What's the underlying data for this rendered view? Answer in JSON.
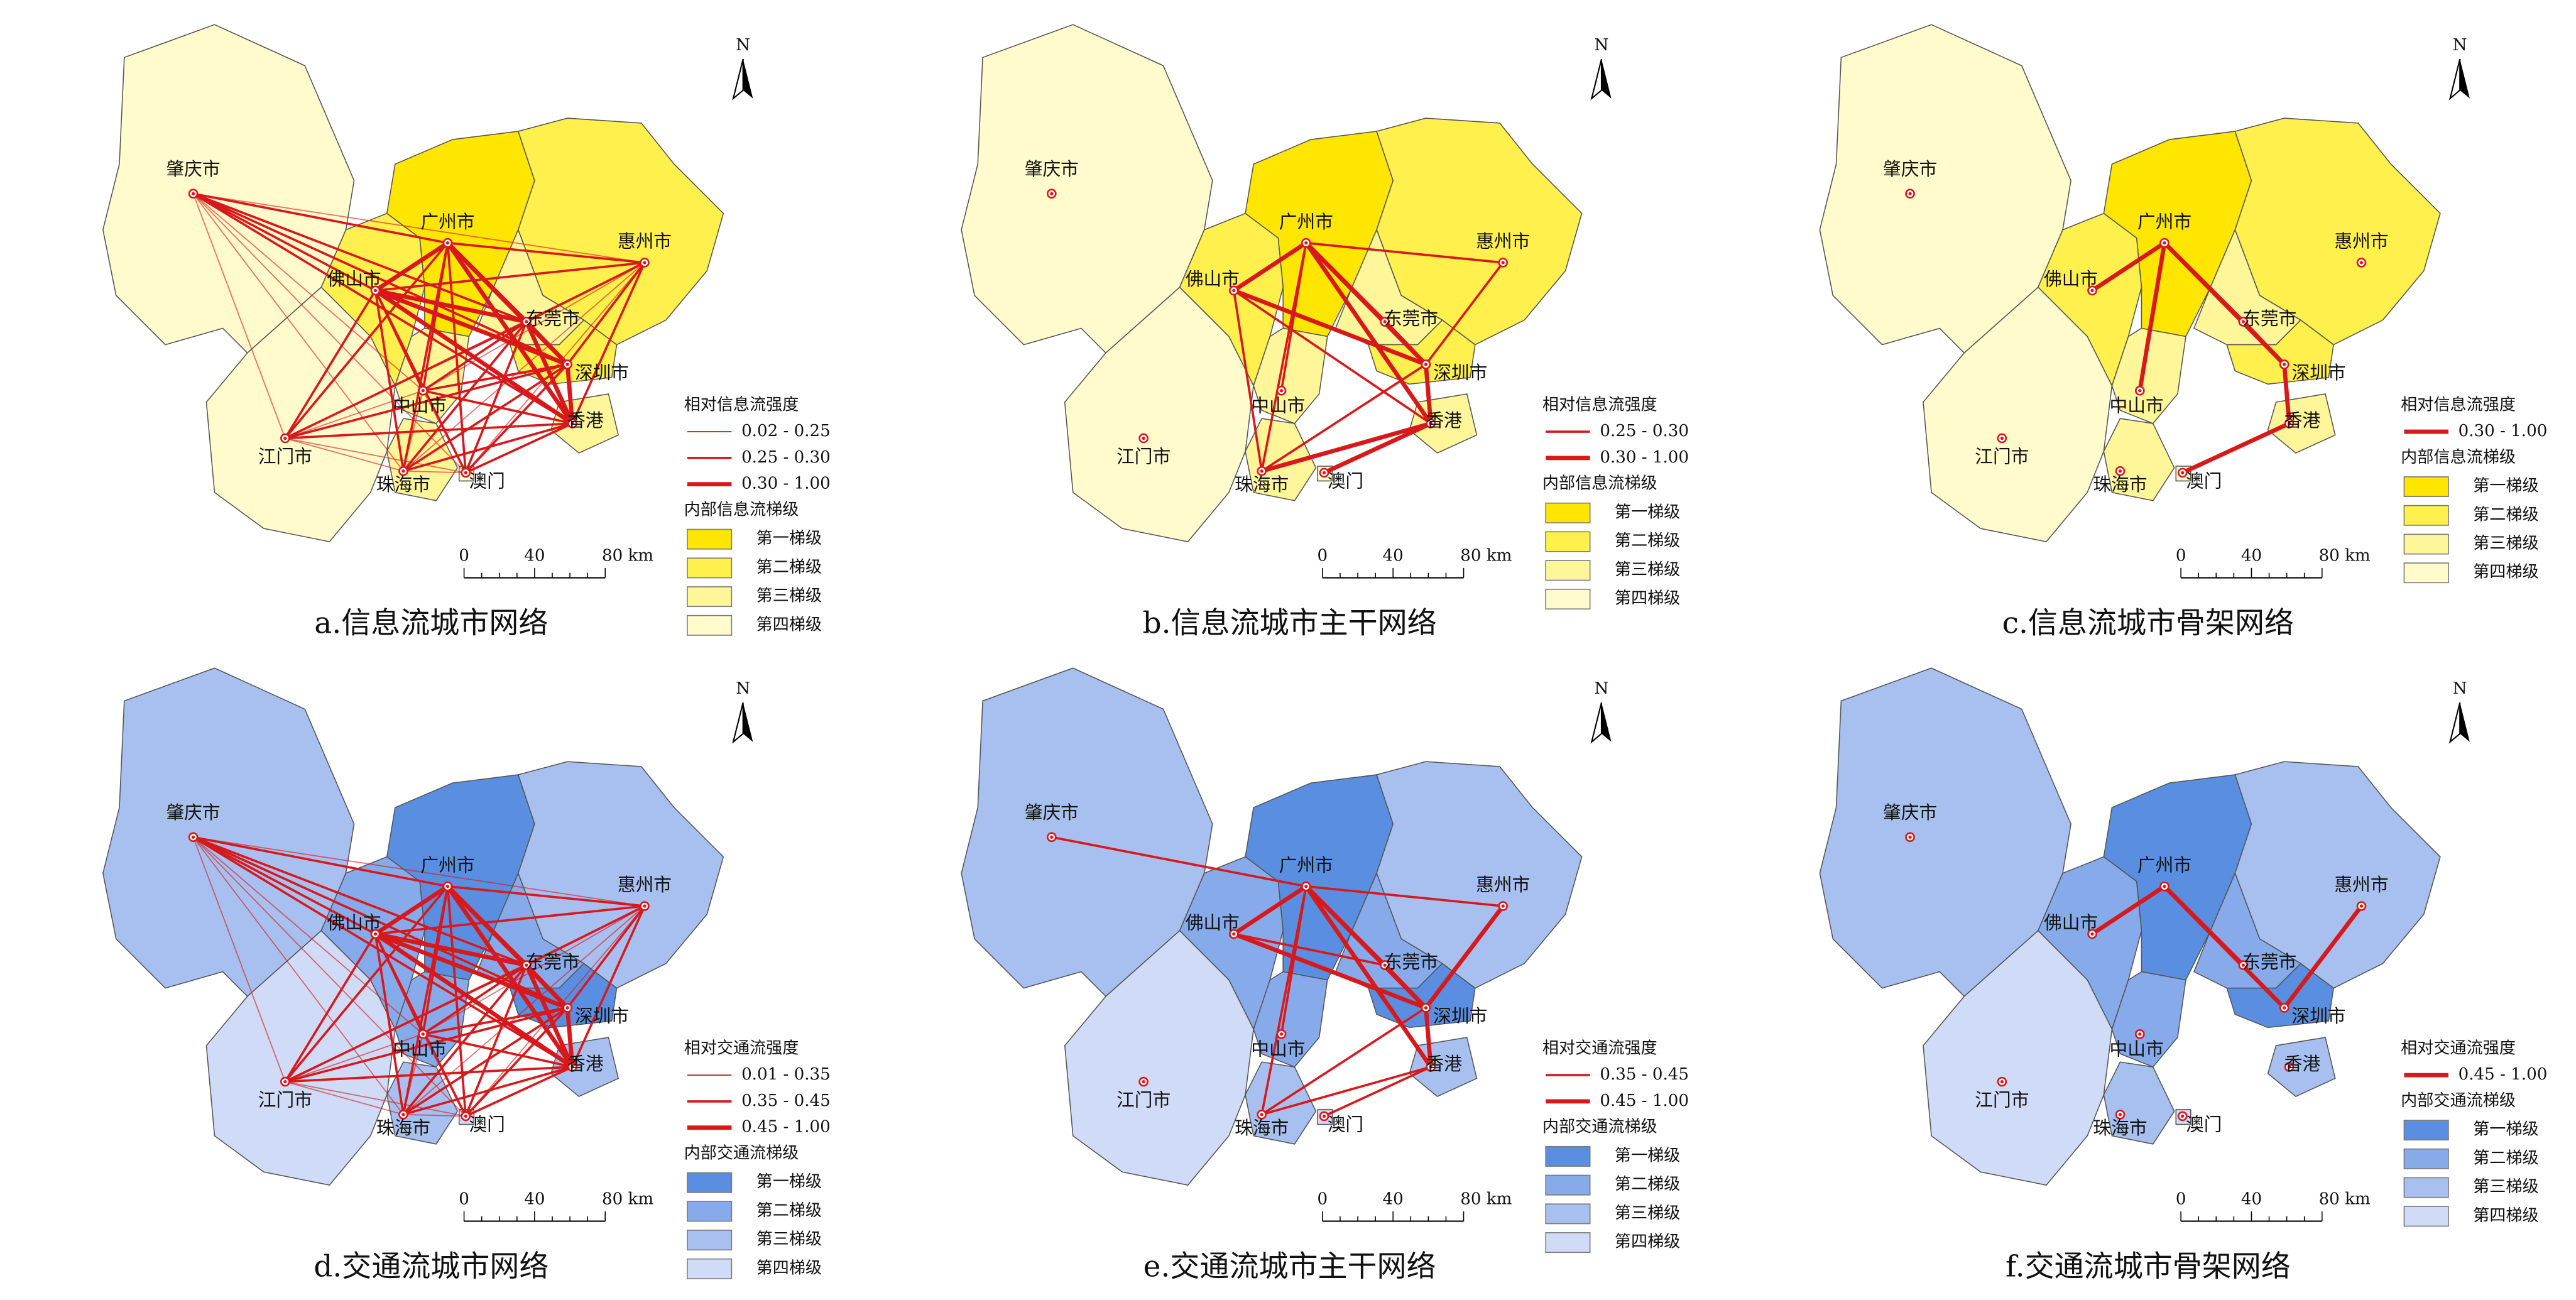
{
  "panels": [
    {
      "caption": "a.信息流城市网络",
      "north": "N",
      "cities": [
        {
          "name": "肇庆市",
          "fill": "#fffbcc"
        },
        {
          "name": "广州市",
          "fill": "#ffe600"
        },
        {
          "name": "惠州市",
          "fill": "#fff04d"
        },
        {
          "name": "佛山市",
          "fill": "#fff04d"
        },
        {
          "name": "东莞市",
          "fill": "#fff599"
        },
        {
          "name": "深圳市",
          "fill": "#fff04d"
        },
        {
          "name": "中山市",
          "fill": "#fff599"
        },
        {
          "name": "江门市",
          "fill": "#fffbcc"
        },
        {
          "name": "珠海市",
          "fill": "#fff599"
        },
        {
          "name": "澳门",
          "fill": "#fffbcc"
        },
        {
          "name": "香港",
          "fill": "#fff599"
        }
      ],
      "legend": {
        "link_title": "相对信息流强度",
        "links": [
          "0.02 - 0.25",
          "0.25 - 0.30",
          "0.30 - 1.00"
        ],
        "link_color": "#d7191c",
        "tier_title": "内部信息流梯级",
        "tiers": [
          {
            "label": "第一梯级",
            "color": "#ffe600"
          },
          {
            "label": "第二梯级",
            "color": "#fff04d"
          },
          {
            "label": "第三梯级",
            "color": "#fff599"
          },
          {
            "label": "第四梯级",
            "color": "#fffbcc"
          }
        ]
      },
      "scale": [
        "0",
        "40",
        "80 km"
      ]
    },
    {
      "caption": "b.信息流城市主干网络",
      "north": "N",
      "cities": [
        {
          "name": "肇庆市",
          "fill": "#fffbcc"
        },
        {
          "name": "广州市",
          "fill": "#ffe600"
        },
        {
          "name": "惠州市",
          "fill": "#fff04d"
        },
        {
          "name": "佛山市",
          "fill": "#fff04d"
        },
        {
          "name": "东莞市",
          "fill": "#fff599"
        },
        {
          "name": "深圳市",
          "fill": "#fff04d"
        },
        {
          "name": "中山市",
          "fill": "#fff599"
        },
        {
          "name": "江门市",
          "fill": "#fffbcc"
        },
        {
          "name": "珠海市",
          "fill": "#fff599"
        },
        {
          "name": "澳门",
          "fill": "#fffbcc"
        },
        {
          "name": "香港",
          "fill": "#fff599"
        }
      ],
      "legend": {
        "link_title": "相对信息流强度",
        "links": [
          "0.25 - 0.30",
          "0.30 - 1.00"
        ],
        "link_color": "#d7191c",
        "tier_title": "内部信息流梯级",
        "tiers": [
          {
            "label": "第一梯级",
            "color": "#ffe600"
          },
          {
            "label": "第二梯级",
            "color": "#fff04d"
          },
          {
            "label": "第三梯级",
            "color": "#fff599"
          },
          {
            "label": "第四梯级",
            "color": "#fffbcc"
          }
        ]
      },
      "scale": [
        "0",
        "40",
        "80 km"
      ]
    },
    {
      "caption": "c.信息流城市骨架网络",
      "north": "N",
      "cities": [
        {
          "name": "肇庆市",
          "fill": "#fffbcc"
        },
        {
          "name": "广州市",
          "fill": "#ffe600"
        },
        {
          "name": "惠州市",
          "fill": "#fff04d"
        },
        {
          "name": "佛山市",
          "fill": "#fff04d"
        },
        {
          "name": "东莞市",
          "fill": "#fff599"
        },
        {
          "name": "深圳市",
          "fill": "#fff04d"
        },
        {
          "name": "中山市",
          "fill": "#fff599"
        },
        {
          "name": "江门市",
          "fill": "#fffbcc"
        },
        {
          "name": "珠海市",
          "fill": "#fff599"
        },
        {
          "name": "澳门",
          "fill": "#fffbcc"
        },
        {
          "name": "香港",
          "fill": "#fff599"
        }
      ],
      "legend": {
        "link_title": "相对信息流强度",
        "links": [
          "0.30 - 1.00"
        ],
        "link_color": "#d7191c",
        "tier_title": "内部信息流梯级",
        "tiers": [
          {
            "label": "第一梯级",
            "color": "#ffe600"
          },
          {
            "label": "第二梯级",
            "color": "#fff04d"
          },
          {
            "label": "第三梯级",
            "color": "#fff599"
          },
          {
            "label": "第四梯级",
            "color": "#fffbcc"
          }
        ]
      },
      "scale": [
        "0",
        "40",
        "80 km"
      ]
    },
    {
      "caption": "d.交通流城市网络",
      "north": "N",
      "cities": [
        {
          "name": "肇庆市",
          "fill": "#a8c0f0"
        },
        {
          "name": "广州市",
          "fill": "#5a8ee0"
        },
        {
          "name": "惠州市",
          "fill": "#a8c0f0"
        },
        {
          "name": "佛山市",
          "fill": "#86aaea"
        },
        {
          "name": "东莞市",
          "fill": "#86aaea"
        },
        {
          "name": "深圳市",
          "fill": "#5a8ee0"
        },
        {
          "name": "中山市",
          "fill": "#86aaea"
        },
        {
          "name": "江门市",
          "fill": "#cfdbf7"
        },
        {
          "name": "珠海市",
          "fill": "#a8c0f0"
        },
        {
          "name": "澳门",
          "fill": "#cfdbf7"
        },
        {
          "name": "香港",
          "fill": "#a8c0f0"
        }
      ],
      "legend": {
        "link_title": "相对交通流强度",
        "links": [
          "0.01 - 0.35",
          "0.35 - 0.45",
          "0.45 - 1.00"
        ],
        "link_color": "#d7191c",
        "tier_title": "内部交通流梯级",
        "tiers": [
          {
            "label": "第一梯级",
            "color": "#5a8ee0"
          },
          {
            "label": "第二梯级",
            "color": "#86aaea"
          },
          {
            "label": "第三梯级",
            "color": "#a8c0f0"
          },
          {
            "label": "第四梯级",
            "color": "#cfdbf7"
          }
        ]
      },
      "scale": [
        "0",
        "40",
        "80 km"
      ]
    },
    {
      "caption": "e.交通流城市主干网络",
      "north": "N",
      "cities": [
        {
          "name": "肇庆市",
          "fill": "#a8c0f0"
        },
        {
          "name": "广州市",
          "fill": "#5a8ee0"
        },
        {
          "name": "惠州市",
          "fill": "#a8c0f0"
        },
        {
          "name": "佛山市",
          "fill": "#86aaea"
        },
        {
          "name": "东莞市",
          "fill": "#86aaea"
        },
        {
          "name": "深圳市",
          "fill": "#5a8ee0"
        },
        {
          "name": "中山市",
          "fill": "#86aaea"
        },
        {
          "name": "江门市",
          "fill": "#cfdbf7"
        },
        {
          "name": "珠海市",
          "fill": "#a8c0f0"
        },
        {
          "name": "澳门",
          "fill": "#cfdbf7"
        },
        {
          "name": "香港",
          "fill": "#a8c0f0"
        }
      ],
      "legend": {
        "link_title": "相对交通流强度",
        "links": [
          "0.35 - 0.45",
          "0.45 - 1.00"
        ],
        "link_color": "#d7191c",
        "tier_title": "内部交通流梯级",
        "tiers": [
          {
            "label": "第一梯级",
            "color": "#5a8ee0"
          },
          {
            "label": "第二梯级",
            "color": "#86aaea"
          },
          {
            "label": "第三梯级",
            "color": "#a8c0f0"
          },
          {
            "label": "第四梯级",
            "color": "#cfdbf7"
          }
        ]
      },
      "scale": [
        "0",
        "40",
        "80 km"
      ]
    },
    {
      "caption": "f.交通流城市骨架网络",
      "north": "N",
      "cities": [
        {
          "name": "肇庆市",
          "fill": "#a8c0f0"
        },
        {
          "name": "广州市",
          "fill": "#5a8ee0"
        },
        {
          "name": "惠州市",
          "fill": "#a8c0f0"
        },
        {
          "name": "佛山市",
          "fill": "#86aaea"
        },
        {
          "name": "东莞市",
          "fill": "#86aaea"
        },
        {
          "name": "深圳市",
          "fill": "#5a8ee0"
        },
        {
          "name": "中山市",
          "fill": "#86aaea"
        },
        {
          "name": "江门市",
          "fill": "#cfdbf7"
        },
        {
          "name": "珠海市",
          "fill": "#a8c0f0"
        },
        {
          "name": "澳门",
          "fill": "#cfdbf7"
        },
        {
          "name": "香港",
          "fill": "#a8c0f0"
        }
      ],
      "legend": {
        "link_title": "相对交通流强度",
        "links": [
          "0.45 - 1.00"
        ],
        "link_color": "#d7191c",
        "tier_title": "内部交通流梯级",
        "tiers": [
          {
            "label": "第一梯级",
            "color": "#5a8ee0"
          },
          {
            "label": "第二梯级",
            "color": "#86aaea"
          },
          {
            "label": "第三梯级",
            "color": "#a8c0f0"
          },
          {
            "label": "第四梯级",
            "color": "#cfdbf7"
          }
        ]
      },
      "scale": [
        "0",
        "40",
        "80 km"
      ]
    }
  ]
}
